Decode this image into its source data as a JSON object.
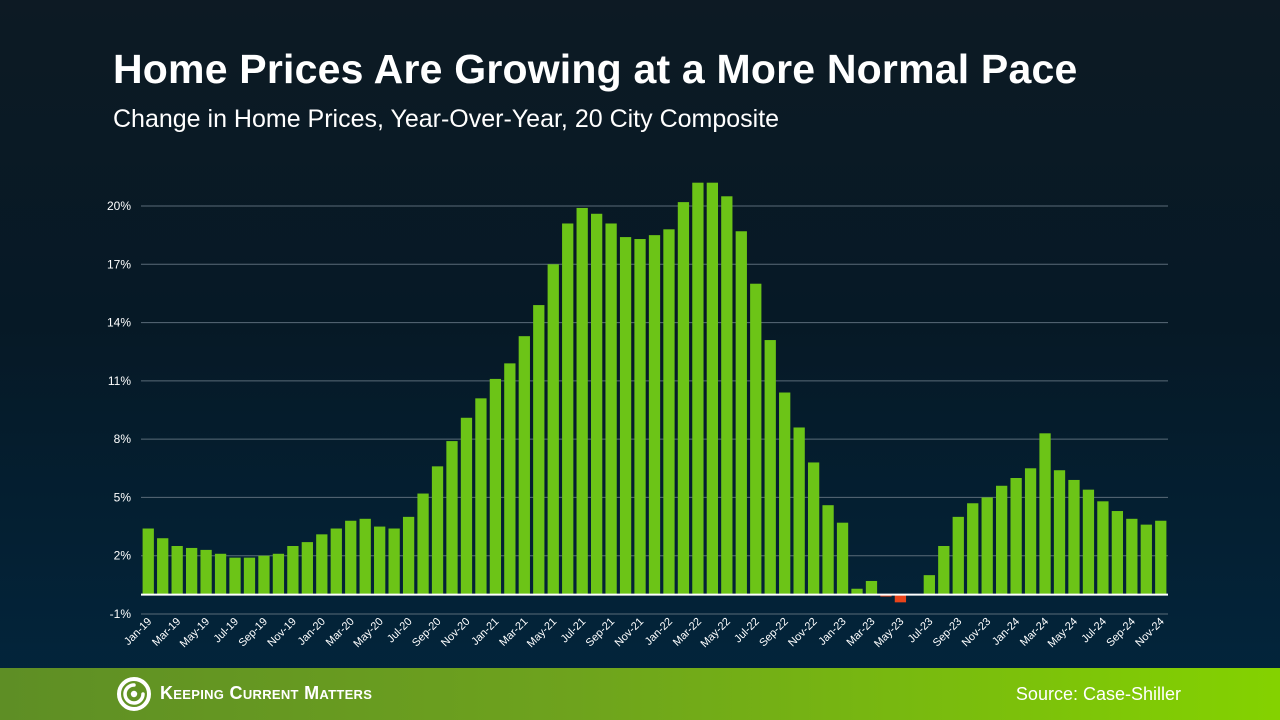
{
  "colors": {
    "positive": "#6cc417",
    "negative": "#e9441b",
    "grid": "#5a6b78",
    "zero_line": "#ffffff"
  },
  "footer": {
    "brand": "Keeping Current Matters",
    "source": "Source: Case-Shiller",
    "logo_icon": "kcm-swirl-icon"
  },
  "chart_data": {
    "type": "bar",
    "title": "Home Prices Are Growing at a More Normal Pace",
    "subtitle": "Change in Home Prices, Year-Over-Year, 20 City Composite",
    "xlabel": "",
    "ylabel": "",
    "ylim": [
      -1,
      20
    ],
    "y_ticks": [
      -1,
      2,
      5,
      8,
      11,
      14,
      17,
      20
    ],
    "y_tick_labels": [
      "-1%",
      "2%",
      "5%",
      "8%",
      "11%",
      "14%",
      "17%",
      "20%"
    ],
    "grid": true,
    "categories": [
      "Jan-19",
      "Feb-19",
      "Mar-19",
      "Apr-19",
      "May-19",
      "Jun-19",
      "Jul-19",
      "Aug-19",
      "Sep-19",
      "Oct-19",
      "Nov-19",
      "Dec-19",
      "Jan-20",
      "Feb-20",
      "Mar-20",
      "Apr-20",
      "May-20",
      "Jun-20",
      "Jul-20",
      "Aug-20",
      "Sep-20",
      "Oct-20",
      "Nov-20",
      "Dec-20",
      "Jan-21",
      "Feb-21",
      "Mar-21",
      "Apr-21",
      "May-21",
      "Jun-21",
      "Jul-21",
      "Aug-21",
      "Sep-21",
      "Oct-21",
      "Nov-21",
      "Dec-21",
      "Jan-22",
      "Feb-22",
      "Mar-22",
      "Apr-22",
      "May-22",
      "Jun-22",
      "Jul-22",
      "Aug-22",
      "Sep-22",
      "Oct-22",
      "Nov-22",
      "Dec-22",
      "Jan-23",
      "Feb-23",
      "Mar-23",
      "Apr-23",
      "May-23",
      "Jun-23",
      "Jul-23",
      "Aug-23",
      "Sep-23",
      "Oct-23",
      "Nov-23",
      "Dec-23",
      "Jan-24",
      "Feb-24",
      "Mar-24",
      "Apr-24",
      "May-24",
      "Jun-24",
      "Jul-24",
      "Aug-24",
      "Sep-24",
      "Oct-24",
      "Nov-24"
    ],
    "x_tick_labels": [
      "Jan-19",
      "Mar-19",
      "May-19",
      "Jul-19",
      "Sep-19",
      "Nov-19",
      "Jan-20",
      "Mar-20",
      "May-20",
      "Jul-20",
      "Sep-20",
      "Nov-20",
      "Jan-21",
      "Mar-21",
      "May-21",
      "Jul-21",
      "Sep-21",
      "Nov-21",
      "Jan-22",
      "Mar-22",
      "May-22",
      "Jul-22",
      "Sep-22",
      "Nov-22",
      "Jan-23",
      "Mar-23",
      "May-23",
      "Jul-23",
      "Sep-23",
      "Nov-23",
      "Jan-24",
      "Mar-24",
      "May-24",
      "Jul-24",
      "Sep-24",
      "Nov-24"
    ],
    "values": [
      3.4,
      2.9,
      2.5,
      2.4,
      2.3,
      2.1,
      1.9,
      1.9,
      2.0,
      2.1,
      2.5,
      2.7,
      3.1,
      3.4,
      3.8,
      3.9,
      3.5,
      3.4,
      4.0,
      5.2,
      6.6,
      7.9,
      9.1,
      10.1,
      11.1,
      11.9,
      13.3,
      14.9,
      17.0,
      19.1,
      19.9,
      19.6,
      19.1,
      18.4,
      18.3,
      18.5,
      18.8,
      20.2,
      21.2,
      21.2,
      20.5,
      18.7,
      16.0,
      13.1,
      10.4,
      8.6,
      6.8,
      4.6,
      3.7,
      0.3,
      0.7,
      -0.1,
      -0.4,
      0.0,
      1.0,
      2.5,
      4.0,
      4.7,
      5.0,
      5.6,
      6.0,
      6.5,
      8.3,
      6.4,
      5.9,
      5.4,
      4.8,
      4.3,
      3.9,
      3.6,
      3.8
    ]
  }
}
